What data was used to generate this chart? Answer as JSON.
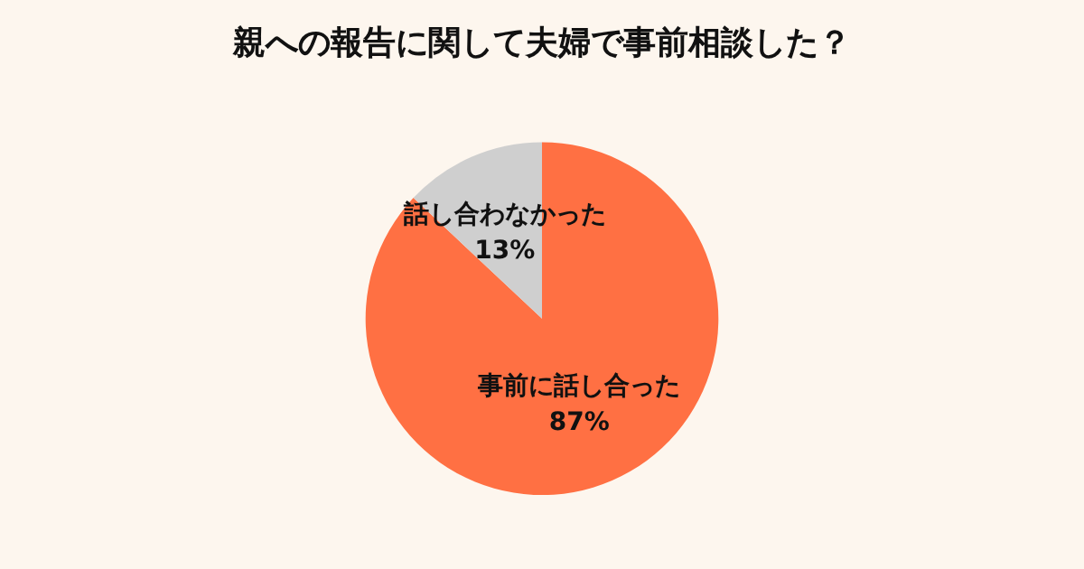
{
  "chart_data": {
    "type": "pie",
    "title": "親への報告に関して夫婦で事前相談した？",
    "categories": [
      "事前に話し合った",
      "話し合わなかった"
    ],
    "values": [
      87,
      13
    ],
    "value_labels": [
      "87%",
      "13%"
    ],
    "colors": [
      "#ff7043",
      "#cfcfcf"
    ],
    "legend": false
  }
}
